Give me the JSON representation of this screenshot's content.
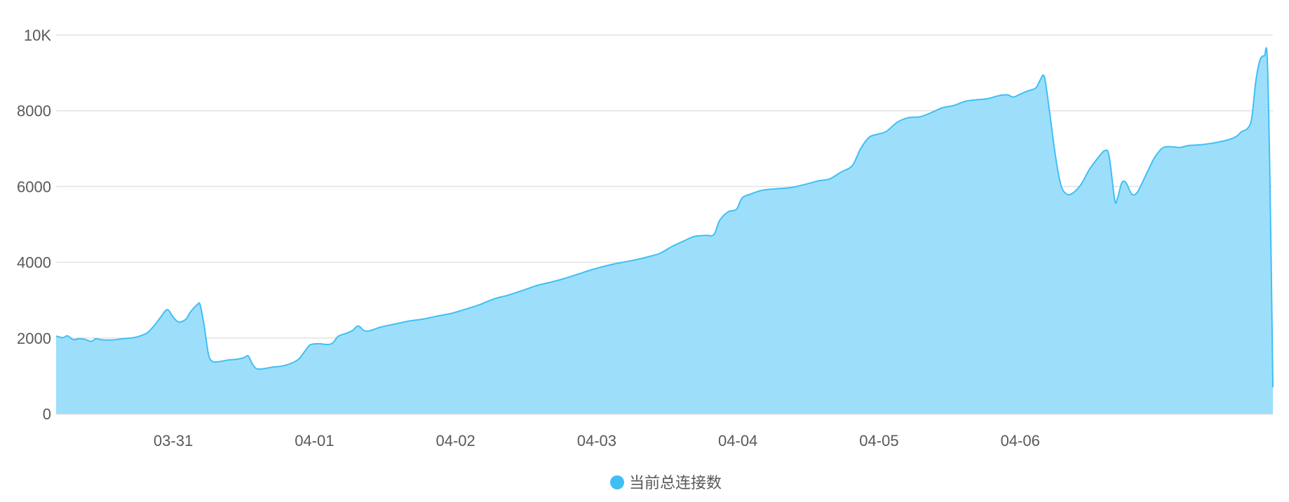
{
  "chart_data": {
    "type": "area",
    "x_range": [
      "03-30 15:00",
      "04-06 23:00"
    ],
    "x_ticks": [
      {
        "label": "03-31",
        "t": 0.83
      },
      {
        "label": "04-01",
        "t": 1.83
      },
      {
        "label": "04-02",
        "t": 2.83
      },
      {
        "label": "04-03",
        "t": 3.83
      },
      {
        "label": "04-04",
        "t": 4.83
      },
      {
        "label": "04-05",
        "t": 5.83
      },
      {
        "label": "04-06",
        "t": 6.83
      }
    ],
    "y_ticks": [
      {
        "label": "0",
        "v": 0
      },
      {
        "label": "2000",
        "v": 2000
      },
      {
        "label": "4000",
        "v": 4000
      },
      {
        "label": "6000",
        "v": 6000
      },
      {
        "label": "8000",
        "v": 8000
      },
      {
        "label": "10K",
        "v": 10000
      }
    ],
    "ylim": [
      0,
      10000
    ],
    "grid": true,
    "legend_position": "bottom-center",
    "series": [
      {
        "name": "当前总连接数",
        "color": "#40bff5",
        "fill": "#9ddffb",
        "points": [
          [
            0.0,
            2050
          ],
          [
            0.05,
            2010
          ],
          [
            0.08,
            2060
          ],
          [
            0.12,
            1960
          ],
          [
            0.16,
            1980
          ],
          [
            0.2,
            1970
          ],
          [
            0.25,
            1910
          ],
          [
            0.28,
            1980
          ],
          [
            0.33,
            1950
          ],
          [
            0.4,
            1950
          ],
          [
            0.45,
            1970
          ],
          [
            0.5,
            1990
          ],
          [
            0.55,
            2010
          ],
          [
            0.6,
            2060
          ],
          [
            0.65,
            2150
          ],
          [
            0.7,
            2350
          ],
          [
            0.75,
            2600
          ],
          [
            0.78,
            2740
          ],
          [
            0.8,
            2720
          ],
          [
            0.83,
            2550
          ],
          [
            0.87,
            2420
          ],
          [
            0.92,
            2500
          ],
          [
            0.95,
            2680
          ],
          [
            1.0,
            2880
          ],
          [
            1.02,
            2880
          ],
          [
            1.05,
            2300
          ],
          [
            1.08,
            1560
          ],
          [
            1.11,
            1380
          ],
          [
            1.16,
            1380
          ],
          [
            1.22,
            1420
          ],
          [
            1.28,
            1440
          ],
          [
            1.33,
            1480
          ],
          [
            1.36,
            1530
          ],
          [
            1.39,
            1320
          ],
          [
            1.42,
            1190
          ],
          [
            1.47,
            1190
          ],
          [
            1.53,
            1230
          ],
          [
            1.6,
            1260
          ],
          [
            1.67,
            1340
          ],
          [
            1.72,
            1450
          ],
          [
            1.76,
            1640
          ],
          [
            1.8,
            1820
          ],
          [
            1.86,
            1850
          ],
          [
            1.92,
            1830
          ],
          [
            1.96,
            1870
          ],
          [
            2.0,
            2050
          ],
          [
            2.06,
            2130
          ],
          [
            2.1,
            2200
          ],
          [
            2.14,
            2320
          ],
          [
            2.18,
            2200
          ],
          [
            2.22,
            2190
          ],
          [
            2.3,
            2290
          ],
          [
            2.4,
            2370
          ],
          [
            2.5,
            2450
          ],
          [
            2.6,
            2500
          ],
          [
            2.7,
            2580
          ],
          [
            2.8,
            2650
          ],
          [
            2.9,
            2760
          ],
          [
            3.0,
            2880
          ],
          [
            3.1,
            3030
          ],
          [
            3.2,
            3130
          ],
          [
            3.3,
            3250
          ],
          [
            3.4,
            3380
          ],
          [
            3.5,
            3470
          ],
          [
            3.6,
            3570
          ],
          [
            3.7,
            3690
          ],
          [
            3.8,
            3810
          ],
          [
            3.9,
            3910
          ],
          [
            4.0,
            3990
          ],
          [
            4.1,
            4060
          ],
          [
            4.2,
            4150
          ],
          [
            4.28,
            4240
          ],
          [
            4.36,
            4410
          ],
          [
            4.44,
            4550
          ],
          [
            4.52,
            4680
          ],
          [
            4.6,
            4710
          ],
          [
            4.66,
            4730
          ],
          [
            4.7,
            5100
          ],
          [
            4.76,
            5330
          ],
          [
            4.82,
            5400
          ],
          [
            4.86,
            5700
          ],
          [
            4.92,
            5800
          ],
          [
            5.0,
            5900
          ],
          [
            5.1,
            5940
          ],
          [
            5.2,
            5970
          ],
          [
            5.3,
            6050
          ],
          [
            5.4,
            6150
          ],
          [
            5.48,
            6200
          ],
          [
            5.56,
            6380
          ],
          [
            5.64,
            6550
          ],
          [
            5.7,
            7000
          ],
          [
            5.76,
            7300
          ],
          [
            5.82,
            7380
          ],
          [
            5.88,
            7450
          ],
          [
            5.96,
            7700
          ],
          [
            6.04,
            7820
          ],
          [
            6.12,
            7840
          ],
          [
            6.2,
            7950
          ],
          [
            6.28,
            8080
          ],
          [
            6.36,
            8140
          ],
          [
            6.44,
            8250
          ],
          [
            6.52,
            8290
          ],
          [
            6.6,
            8320
          ],
          [
            6.68,
            8400
          ],
          [
            6.74,
            8420
          ],
          [
            6.78,
            8360
          ],
          [
            6.82,
            8420
          ],
          [
            6.88,
            8520
          ],
          [
            6.94,
            8600
          ],
          [
            6.97,
            8800
          ],
          [
            7.0,
            8910
          ],
          [
            7.03,
            8200
          ],
          [
            7.08,
            6800
          ],
          [
            7.12,
            6020
          ],
          [
            7.16,
            5800
          ],
          [
            7.2,
            5820
          ],
          [
            7.26,
            6050
          ],
          [
            7.32,
            6450
          ],
          [
            7.38,
            6750
          ],
          [
            7.43,
            6950
          ],
          [
            7.46,
            6800
          ],
          [
            7.5,
            5640
          ],
          [
            7.52,
            5700
          ],
          [
            7.55,
            6100
          ],
          [
            7.58,
            6100
          ],
          [
            7.62,
            5800
          ],
          [
            7.66,
            5850
          ],
          [
            7.72,
            6300
          ],
          [
            7.78,
            6750
          ],
          [
            7.84,
            7020
          ],
          [
            7.9,
            7050
          ],
          [
            7.96,
            7030
          ],
          [
            8.02,
            7080
          ],
          [
            8.1,
            7100
          ],
          [
            8.2,
            7150
          ],
          [
            8.3,
            7230
          ],
          [
            8.36,
            7320
          ],
          [
            8.4,
            7450
          ],
          [
            8.44,
            7530
          ],
          [
            8.47,
            7800
          ],
          [
            8.5,
            8800
          ],
          [
            8.53,
            9350
          ],
          [
            8.56,
            9450
          ],
          [
            8.58,
            9400
          ],
          [
            8.6,
            6000
          ],
          [
            8.62,
            700
          ]
        ]
      }
    ]
  }
}
